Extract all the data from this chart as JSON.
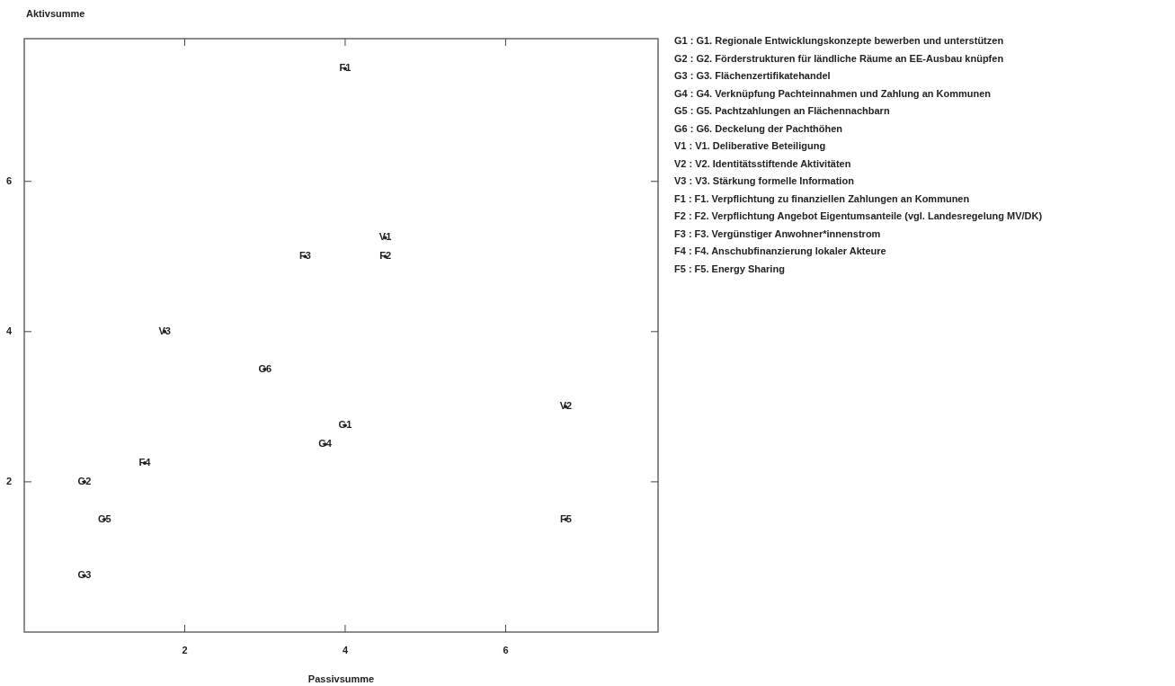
{
  "chart_data": {
    "type": "scatter",
    "xlabel": "Passivsumme",
    "ylabel": "Aktivsumme",
    "x": [
      4,
      0.75,
      0.75,
      3.75,
      1,
      3,
      4.5,
      6.75,
      1.75,
      4,
      4.5,
      3.5,
      1.5,
      6.75
    ],
    "values": [
      2.75,
      2,
      0.75,
      2.5,
      1.5,
      3.5,
      5.25,
      3,
      4,
      7.5,
      5,
      5,
      2.25,
      1.5
    ],
    "value_labels": [
      "G1",
      "G2",
      "G3",
      "G4",
      "G5",
      "G6",
      "V1",
      "V2",
      "V3",
      "F1",
      "F2",
      "F3",
      "F4",
      "F5"
    ],
    "color": "#222222",
    "marker": "circle",
    "grid": false,
    "legend": false,
    "xlim": [
      0,
      7.9
    ],
    "ylim": [
      0,
      7.9
    ],
    "xticks": [
      2,
      4,
      6
    ],
    "yticks": [
      2,
      4,
      6
    ],
    "annotations": [
      "G1 : G1. Regionale Entwicklungskonzepte bewerben und unterstützen",
      "G2 : G2. Förderstrukturen für ländliche Räume an EE-Ausbau knüpfen",
      "G3 : G3. Flächenzertifikatehandel",
      "G4 : G4. Verknüpfung Pachteinnahmen und Zahlung an Kommunen",
      "G5 : G5. Pachtzahlungen an Flächennachbarn",
      "G6 : G6. Deckelung der Pachthöhen",
      "V1 : V1. Deliberative Beteiligung",
      "V2 : V2. Identitätsstiftende Aktivitäten",
      "V3 : V3. Stärkung formelle Information",
      "F1 : F1. Verpflichtung zu finanziellen Zahlungen an Kommunen",
      "F2 : F2. Verpflichtung Angebot Eigentumsanteile (vgl. Landesregelung MV/DK)",
      "F3 : F3. Vergünstiger Anwohner*innenstrom",
      "F4 : F4. Anschubfinanzierung lokaler Akteure",
      "F5 : F5. Energy Sharing"
    ]
  }
}
